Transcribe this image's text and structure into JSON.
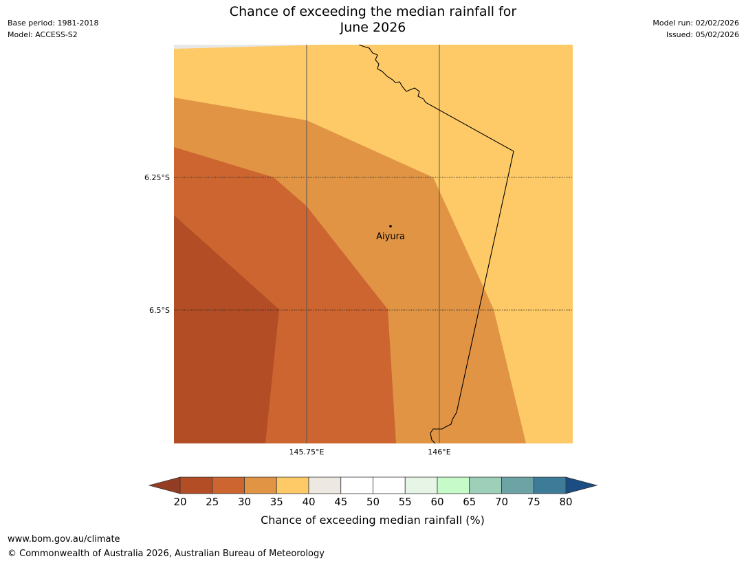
{
  "header": {
    "title_line1": "Chance of exceeding the median rainfall for",
    "title_line2": "June 2026",
    "base_period": "Base period: 1981-2018",
    "model": "Model: ACCESS-S2",
    "model_run": "Model run: 02/02/2026",
    "issued": "Issued: 05/02/2026"
  },
  "map": {
    "lon_labels": [
      "145.75°E",
      "146°E"
    ],
    "lat_labels": [
      "6.25°S",
      "6.5°S"
    ],
    "place_name": "Aiyura",
    "zone_colors": {
      "band_20_25": "#b24d25",
      "band_25_30": "#cc6530",
      "band_30_35": "#e09444",
      "band_35_40": "#fdca67"
    }
  },
  "colorbar": {
    "ticks": [
      "20",
      "25",
      "30",
      "35",
      "40",
      "45",
      "50",
      "55",
      "60",
      "65",
      "70",
      "75",
      "80"
    ],
    "colors": [
      "#b24d25",
      "#cc6530",
      "#e09444",
      "#fdca67",
      "#ede8e1",
      "#ffffff",
      "#ffffff",
      "#e7f5e7",
      "#c6fbc9",
      "#9ecfb8",
      "#6da3a4",
      "#3e7b99"
    ],
    "under_color": "#943d24",
    "over_color": "#1a4d82",
    "label": "Chance of exceeding median rainfall (%)"
  },
  "footer": {
    "url": "www.bom.gov.au/climate",
    "copyright": "© Commonwealth of Australia 2026, Australian Bureau of Meteorology"
  }
}
